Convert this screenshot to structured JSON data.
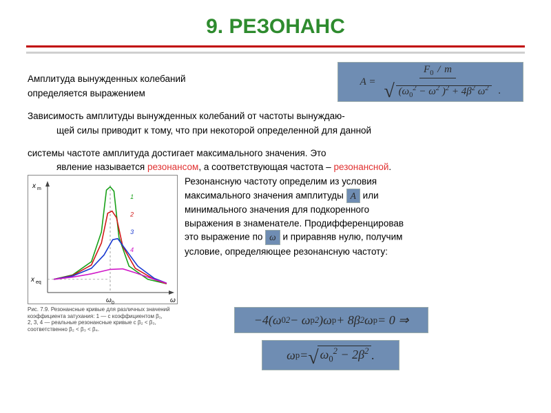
{
  "title": {
    "text": "9. РЕЗОНАНС",
    "color": "#2e8b2e",
    "fontsize": 30
  },
  "divider": {
    "color": "#c00000",
    "shadow": "#cfcfcf"
  },
  "body_text": {
    "l1": "Амплитуда вынужденных колебаний",
    "l2": "определяется выражением",
    "l3": "Зависимость амплитуды вынужденных колебаний от частоты вынуждаю-",
    "l4": "щей силы приводит к тому, что при некоторой определенной для данной",
    "l5a": "системы частоте амплитуда достигает максимального значения. Это",
    "l5b_plain": "явление называется ",
    "l5b_red1": "резонансом",
    "l5b_mid": ", а соответствующая частота – ",
    "l5b_red2": "резонансной",
    "l5b_end": "."
  },
  "mid_para": {
    "p1": "Резонансную частоту определим из условия",
    "p2a": "максимального значения амплитуды",
    "p2b": " или",
    "p3": "минимального значения для подкоренного",
    "p4": "выражения в знаменателе. Продифференцировав",
    "p5a": "это выражение по ",
    "p5b": " и приравняв нулю, получим",
    "p6": "условие, определяющее резонансную частоту:",
    "A_sym": "A",
    "omega_sym": "ω"
  },
  "red_color": "#e03030",
  "text_color": "#2b2b2b",
  "formula1": {
    "lhs": "A =",
    "num_top": "F",
    "num_top_sub": "0",
    "num_slash": "/",
    "num_m": "m",
    "den_a": "(ω",
    "den_a_sub": "0",
    "den_a_sup": "2",
    "den_b": " − ω",
    "den_b_sup": "2",
    "den_c": ")",
    "den_c_sup": "2",
    "den_d": " + 4β",
    "den_d_sup": "2",
    "den_e": "ω",
    "den_e_sup": "2",
    "dot": "."
  },
  "formula2": {
    "t1": "−4(ω",
    "t1_sub": "0",
    "t1_sup": "2",
    "t2": " − ω",
    "t2_sub": "p",
    "t2_sup": "2",
    "t3": ")ω",
    "t3_sub": "p",
    "t4": " + 8β",
    "t4_sup": "2",
    "t5": "ω",
    "t5_sub": "p",
    "t6": " = 0 ⇒"
  },
  "formula3": {
    "lhs": "ω",
    "lhs_sub": "p",
    "eq": " = ",
    "r1": "ω",
    "r1_sub": "0",
    "r1_sup": "2",
    "r2": " − 2β",
    "r2_sup": "2",
    "dot": " ."
  },
  "chart": {
    "type": "line",
    "xlim": [
      0,
      10
    ],
    "ylim": [
      0,
      10
    ],
    "resonance_x": 5.0,
    "curves": [
      {
        "label": "1",
        "color": "#17a017",
        "points": [
          [
            0.5,
            1.2
          ],
          [
            2,
            1.6
          ],
          [
            3.5,
            2.8
          ],
          [
            4.3,
            5.5
          ],
          [
            4.7,
            9.3
          ],
          [
            5.0,
            9.6
          ],
          [
            5.3,
            9.2
          ],
          [
            5.7,
            5.0
          ],
          [
            6.5,
            2.4
          ],
          [
            8,
            1.2
          ],
          [
            9.5,
            0.8
          ]
        ]
      },
      {
        "label": "2",
        "color": "#d01818",
        "points": [
          [
            0.5,
            1.2
          ],
          [
            2,
            1.55
          ],
          [
            3.5,
            2.5
          ],
          [
            4.3,
            4.5
          ],
          [
            4.8,
            7.2
          ],
          [
            5.15,
            7.4
          ],
          [
            5.5,
            6.8
          ],
          [
            6.0,
            4.2
          ],
          [
            7,
            2.2
          ],
          [
            8.5,
            1.2
          ],
          [
            9.5,
            0.8
          ]
        ]
      },
      {
        "label": "3",
        "color": "#1838d0",
        "points": [
          [
            0.5,
            1.2
          ],
          [
            2,
            1.5
          ],
          [
            3.5,
            2.2
          ],
          [
            4.5,
            3.4
          ],
          [
            5.2,
            4.8
          ],
          [
            5.6,
            4.9
          ],
          [
            6.3,
            3.8
          ],
          [
            7.2,
            2.4
          ],
          [
            8.5,
            1.3
          ],
          [
            9.5,
            0.85
          ]
        ]
      },
      {
        "label": "4",
        "color": "#d018c8",
        "points": [
          [
            0.5,
            1.2
          ],
          [
            2,
            1.4
          ],
          [
            3.5,
            1.7
          ],
          [
            5.0,
            2.1
          ],
          [
            6.0,
            2.15
          ],
          [
            7.0,
            1.8
          ],
          [
            8.5,
            1.2
          ],
          [
            9.5,
            0.85
          ]
        ]
      }
    ],
    "x_markers": [
      1.2,
      1.0
    ],
    "axis_color": "#444444",
    "line_width": 1.6,
    "label_fontsize": 9,
    "y_label_top": "x",
    "y_label_top_sub": "m",
    "y_label_mid": "x",
    "y_label_mid_sub": "eq",
    "x_label_mid": "ω",
    "x_label_mid_sub": "0",
    "x_label_right": "ω"
  },
  "chart_caption": {
    "l1": "Рис. 7.9. Резонансные кривые для различных значений",
    "l2": "коэффициента затухания: 1 — с коэффициентом β₁,",
    "l3": "2, 3, 4 — реальные резонансные кривые с β₂ < β₃,",
    "l4": "соответственно β₂ < β₃ < β₄."
  },
  "formula_bg": "#6f8db3"
}
